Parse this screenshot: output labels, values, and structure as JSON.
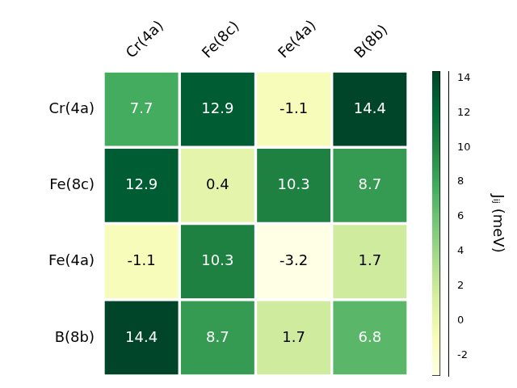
{
  "chart_data": {
    "type": "heatmap",
    "rows": [
      "Cr(4a)",
      "Fe(8c)",
      "Fe(4a)",
      "B(8b)"
    ],
    "columns": [
      "Cr(4a)",
      "Fe(8c)",
      "Fe(4a)",
      "B(8b)"
    ],
    "cells": [
      [
        7.7,
        12.9,
        -1.1,
        14.4
      ],
      [
        12.9,
        0.4,
        10.3,
        8.7
      ],
      [
        -1.1,
        10.3,
        -3.2,
        1.7
      ],
      [
        14.4,
        8.7,
        1.7,
        6.8
      ]
    ],
    "data_labels": true,
    "colorbar": {
      "label": "Jᵢⱼ (meV)",
      "range": [
        -3.2,
        14.4
      ],
      "ticks": [
        -2,
        0,
        2,
        4,
        6,
        8,
        10,
        12,
        14
      ]
    }
  }
}
